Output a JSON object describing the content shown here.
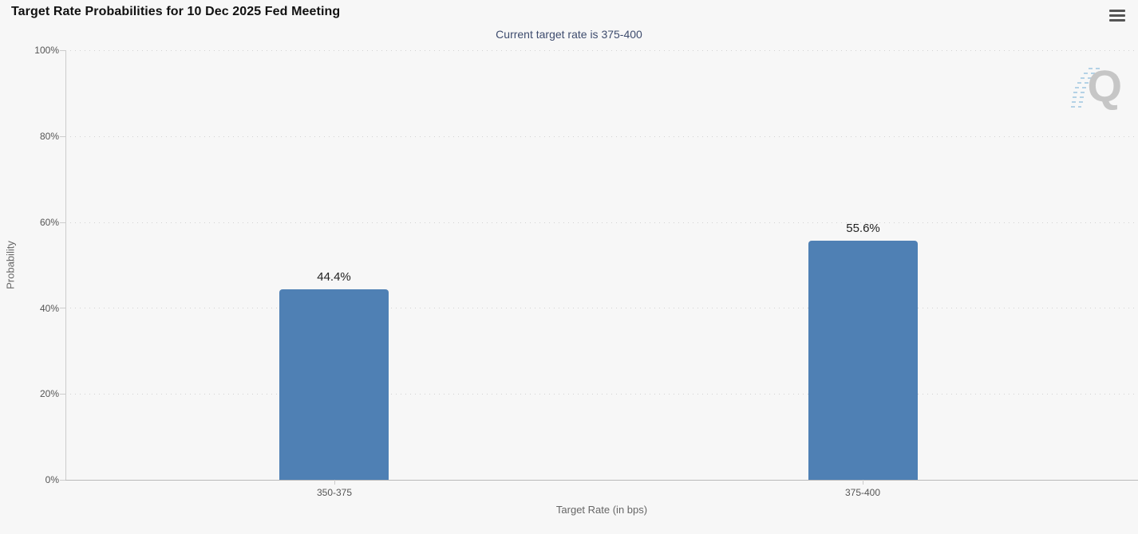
{
  "header": {
    "title": "Target Rate Probabilities for 10 Dec 2025 Fed Meeting",
    "subtitle": "Current target rate is 375-400",
    "watermark_letter": "Q"
  },
  "chart_data": {
    "type": "bar",
    "title": "Target Rate Probabilities for 10 Dec 2025 Fed Meeting",
    "subtitle": "Current target rate is 375-400",
    "categories": [
      "350-375",
      "375-400"
    ],
    "values": [
      44.4,
      55.6
    ],
    "value_labels": [
      "44.4%",
      "55.6%"
    ],
    "xlabel": "Target Rate (in bps)",
    "ylabel": "Probability",
    "ylim": [
      0,
      100
    ],
    "ytick_labels": [
      "100%",
      "80%",
      "60%",
      "40%",
      "20%",
      "0%"
    ],
    "grid": "horizontal dotted gridlines at 20% intervals",
    "legend_position": "none",
    "bar_color": "#4f80b4"
  },
  "colors": {
    "background": "#f7f7f7",
    "bar": "#4f80b4",
    "subtitle_text": "#3e4c6e",
    "axis_text": "#555555",
    "axis_title_text": "#666666",
    "gridline": "#d2d2d2",
    "axis_line": "#bbbbbb",
    "watermark": "#c6c6c6"
  }
}
